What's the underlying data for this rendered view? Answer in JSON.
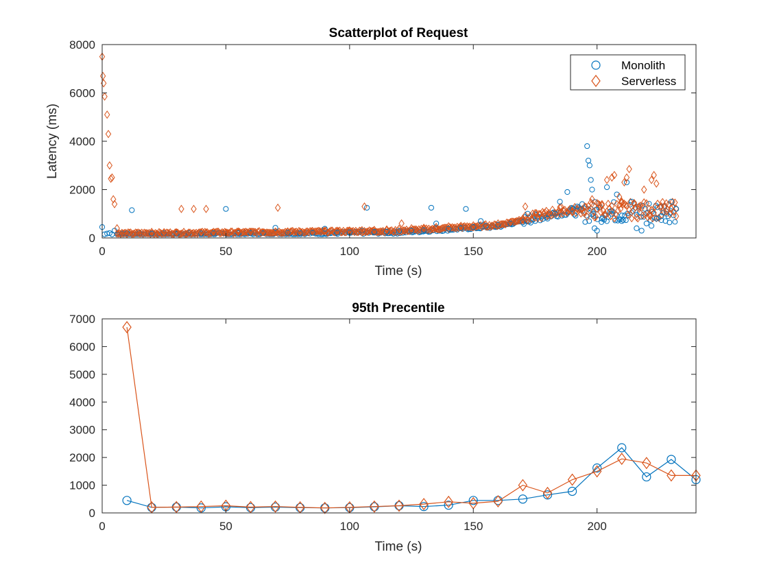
{
  "colors": {
    "monolith": "#0072BD",
    "serverless": "#D95319",
    "axis": "#262626"
  },
  "chart_data": [
    {
      "type": "scatter",
      "title": "Scatterplot of Request",
      "xlabel": "Time (s)",
      "ylabel": "Latency (ms)",
      "xlim": [
        0,
        240
      ],
      "ylim": [
        0,
        8000
      ],
      "xticks": [
        0,
        50,
        100,
        150,
        200
      ],
      "yticks": [
        0,
        2000,
        4000,
        6000,
        8000
      ],
      "legend": {
        "position": "top-right",
        "entries": [
          "Monolith",
          "Serverless"
        ]
      },
      "series": [
        {
          "name": "Monolith",
          "marker": "circle",
          "points": [
            [
              0,
              450
            ],
            [
              1,
              150
            ],
            [
              2,
              180
            ],
            [
              3,
              200
            ],
            [
              4,
              150
            ],
            [
              5,
              300
            ],
            [
              8,
              180
            ],
            [
              10,
              200
            ],
            [
              12,
              1150
            ],
            [
              15,
              200
            ],
            [
              20,
              180
            ],
            [
              25,
              200
            ],
            [
              30,
              180
            ],
            [
              35,
              200
            ],
            [
              40,
              190
            ],
            [
              45,
              200
            ],
            [
              50,
              1200
            ],
            [
              55,
              200
            ],
            [
              60,
              210
            ],
            [
              65,
              200
            ],
            [
              70,
              420
            ],
            [
              75,
              220
            ],
            [
              80,
              200
            ],
            [
              85,
              210
            ],
            [
              90,
              380
            ],
            [
              95,
              220
            ],
            [
              100,
              230
            ],
            [
              105,
              300
            ],
            [
              107,
              1250
            ],
            [
              110,
              250
            ],
            [
              115,
              260
            ],
            [
              120,
              280
            ],
            [
              125,
              300
            ],
            [
              130,
              320
            ],
            [
              133,
              1250
            ],
            [
              135,
              600
            ],
            [
              140,
              380
            ],
            [
              145,
              400
            ],
            [
              147,
              1200
            ],
            [
              150,
              450
            ],
            [
              153,
              700
            ],
            [
              155,
              500
            ],
            [
              160,
              550
            ],
            [
              165,
              600
            ],
            [
              170,
              650
            ],
            [
              172,
              1000
            ],
            [
              175,
              700
            ],
            [
              180,
              800
            ],
            [
              183,
              1000
            ],
            [
              185,
              1500
            ],
            [
              188,
              1900
            ],
            [
              190,
              1200
            ],
            [
              192,
              1300
            ],
            [
              194,
              1400
            ],
            [
              196,
              3800
            ],
            [
              196.5,
              3200
            ],
            [
              197,
              3000
            ],
            [
              197.5,
              2400
            ],
            [
              198,
              2000
            ],
            [
              198.5,
              1000
            ],
            [
              199,
              400
            ],
            [
              200,
              300
            ],
            [
              202,
              800
            ],
            [
              204,
              2100
            ],
            [
              206,
              1000
            ],
            [
              208,
              1800
            ],
            [
              210,
              700
            ],
            [
              212,
              2300
            ],
            [
              214,
              1500
            ],
            [
              216,
              400
            ],
            [
              218,
              300
            ],
            [
              220,
              600
            ],
            [
              222,
              500
            ],
            [
              224,
              800
            ],
            [
              226,
              900
            ],
            [
              228,
              1100
            ],
            [
              230,
              1500
            ],
            [
              232,
              1200
            ]
          ]
        },
        {
          "name": "Serverless",
          "marker": "diamond",
          "points": [
            [
              0,
              7500
            ],
            [
              0.3,
              6700
            ],
            [
              0.6,
              6400
            ],
            [
              1,
              5850
            ],
            [
              2,
              5100
            ],
            [
              2.5,
              4300
            ],
            [
              3,
              3000
            ],
            [
              3.5,
              2450
            ],
            [
              4,
              2500
            ],
            [
              4.5,
              1600
            ],
            [
              5,
              1400
            ],
            [
              6,
              400
            ],
            [
              8,
              200
            ],
            [
              10,
              180
            ],
            [
              15,
              200
            ],
            [
              20,
              250
            ],
            [
              25,
              220
            ],
            [
              30,
              210
            ],
            [
              32,
              1200
            ],
            [
              35,
              220
            ],
            [
              37,
              1200
            ],
            [
              40,
              230
            ],
            [
              42,
              1200
            ],
            [
              45,
              250
            ],
            [
              50,
              230
            ],
            [
              55,
              240
            ],
            [
              60,
              250
            ],
            [
              65,
              240
            ],
            [
              70,
              260
            ],
            [
              71,
              1250
            ],
            [
              75,
              270
            ],
            [
              80,
              260
            ],
            [
              85,
              280
            ],
            [
              90,
              300
            ],
            [
              95,
              300
            ],
            [
              100,
              310
            ],
            [
              105,
              320
            ],
            [
              106,
              1300
            ],
            [
              110,
              330
            ],
            [
              115,
              350
            ],
            [
              120,
              380
            ],
            [
              121,
              600
            ],
            [
              125,
              400
            ],
            [
              130,
              420
            ],
            [
              135,
              450
            ],
            [
              140,
              480
            ],
            [
              145,
              500
            ],
            [
              150,
              520
            ],
            [
              155,
              560
            ],
            [
              160,
              600
            ],
            [
              165,
              650
            ],
            [
              170,
              800
            ],
            [
              171,
              1300
            ],
            [
              175,
              850
            ],
            [
              180,
              900
            ],
            [
              185,
              1000
            ],
            [
              190,
              1100
            ],
            [
              195,
              1300
            ],
            [
              198,
              1600
            ],
            [
              200,
              1200
            ],
            [
              202,
              1400
            ],
            [
              204,
              2400
            ],
            [
              206,
              2500
            ],
            [
              207,
              2600
            ],
            [
              209,
              1700
            ],
            [
              210,
              1500
            ],
            [
              211,
              2300
            ],
            [
              212,
              2500
            ],
            [
              213,
              2850
            ],
            [
              215,
              1400
            ],
            [
              217,
              1300
            ],
            [
              219,
              2000
            ],
            [
              221,
              1200
            ],
            [
              222,
              2400
            ],
            [
              223,
              2600
            ],
            [
              224,
              2250
            ],
            [
              226,
              1300
            ],
            [
              228,
              1100
            ],
            [
              230,
              1200
            ],
            [
              232,
              900
            ]
          ]
        }
      ]
    },
    {
      "type": "line",
      "title": "95th Precentile",
      "xlabel": "Time (s)",
      "ylabel": "",
      "xlim": [
        0,
        240
      ],
      "ylim": [
        0,
        7000
      ],
      "xticks": [
        0,
        50,
        100,
        150,
        200
      ],
      "yticks": [
        0,
        1000,
        2000,
        3000,
        4000,
        5000,
        6000,
        7000
      ],
      "x": [
        10,
        20,
        30,
        40,
        50,
        60,
        70,
        80,
        90,
        100,
        110,
        120,
        130,
        140,
        150,
        160,
        170,
        180,
        190,
        200,
        210,
        220,
        230,
        240
      ],
      "series": [
        {
          "name": "Monolith",
          "marker": "circle",
          "values": [
            450,
            200,
            210,
            180,
            220,
            190,
            210,
            190,
            180,
            190,
            220,
            260,
            230,
            280,
            450,
            450,
            500,
            650,
            780,
            1620,
            2350,
            1300,
            1930,
            1200
          ]
        },
        {
          "name": "Serverless",
          "marker": "diamond",
          "values": [
            6700,
            200,
            210,
            230,
            260,
            210,
            230,
            200,
            180,
            200,
            230,
            260,
            320,
            400,
            350,
            420,
            1000,
            720,
            1200,
            1500,
            1950,
            1800,
            1350,
            1350
          ]
        }
      ]
    }
  ]
}
